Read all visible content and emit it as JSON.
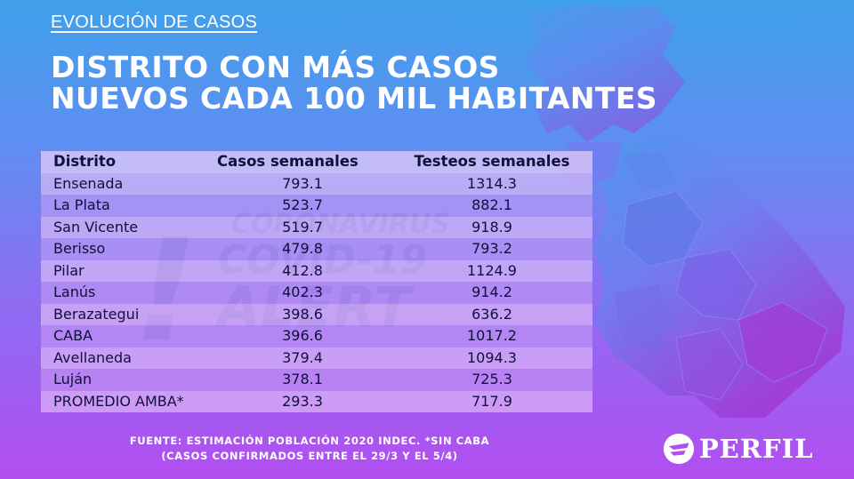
{
  "kicker": "EVOLUCIÓN DE CASOS",
  "title": {
    "line1": "DISTRITO CON MÁS CASOS",
    "line2": "NUEVOS CADA 100 MIL HABITANTES"
  },
  "watermark": {
    "line1": "CORONAVIRUS",
    "line2": "COVID-19",
    "line3": "ALERT",
    "mark": "!"
  },
  "chart_data": {
    "type": "table",
    "columns": [
      "Distrito",
      "Casos semanales",
      "Testeos semanales"
    ],
    "rows": [
      {
        "district": "Ensenada",
        "cases": "793.1",
        "tests": "1314.3"
      },
      {
        "district": "La Plata",
        "cases": "523.7",
        "tests": "882.1"
      },
      {
        "district": "San Vicente",
        "cases": "519.7",
        "tests": "918.9"
      },
      {
        "district": "Berisso",
        "cases": "479.8",
        "tests": "793.2"
      },
      {
        "district": "Pilar",
        "cases": "412.8",
        "tests": "1124.9"
      },
      {
        "district": "Lanús",
        "cases": "402.3",
        "tests": "914.2"
      },
      {
        "district": "Berazategui",
        "cases": "398.6",
        "tests": "636.2"
      },
      {
        "district": "CABA",
        "cases": "396.6",
        "tests": "1017.2"
      },
      {
        "district": "Avellaneda",
        "cases": "379.4",
        "tests": "1094.3"
      },
      {
        "district": "Luján",
        "cases": "378.1",
        "tests": "725.3"
      },
      {
        "district": "PROMEDIO AMBA*",
        "cases": "293.3",
        "tests": "717.9"
      }
    ]
  },
  "footer": {
    "line1": "FUENTE: ESTIMACIÓN POBLACIÓN 2020 INDEC. *SIN CABA",
    "line2": "(CASOS CONFIRMADOS ENTRE EL 29/3 Y EL 5/4)"
  },
  "logo": {
    "text": "PERFIL",
    "icon": "perfil-logo-icon"
  },
  "colors": {
    "background_top": "#3fa0ea",
    "background_bottom": "#b24ef0",
    "text_dark": "#10103a",
    "map_light": "#6b8cf0",
    "map_dark": "#9a2fd0"
  }
}
